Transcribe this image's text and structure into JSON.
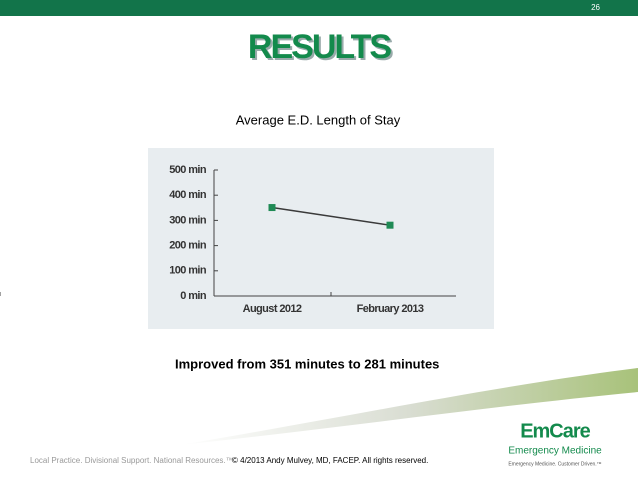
{
  "page_number": "26",
  "title": "RESULTS",
  "chart_data": {
    "type": "line",
    "title": "Average E.D. Length of Stay",
    "categories": [
      "August 2012",
      "February 2013"
    ],
    "values": [
      351,
      281
    ],
    "color": "#3a3a3a",
    "marker_color": "#1f8a55",
    "ylim": [
      0,
      500
    ],
    "yticks": [
      {
        "value": 0,
        "label": "0 min"
      },
      {
        "value": 100,
        "label": "100 min"
      },
      {
        "value": 200,
        "label": "200 min"
      },
      {
        "value": 300,
        "label": "300 min"
      },
      {
        "value": 400,
        "label": "400 min"
      },
      {
        "value": 500,
        "label": "500 min"
      }
    ],
    "grid": false
  },
  "summary": "Improved from 351 minutes to 281 minutes",
  "footer": {
    "tagline": "Local Practice. Divisional Support. National Resources.™",
    "copyright": "© 4/2013 Andy Mulvey, MD, FACEP. All rights reserved."
  },
  "logo": {
    "name": "EmCare",
    "subtitle": "Emergency Medicine",
    "tagline": "Emergency Medicine. Customer Driven.™"
  }
}
